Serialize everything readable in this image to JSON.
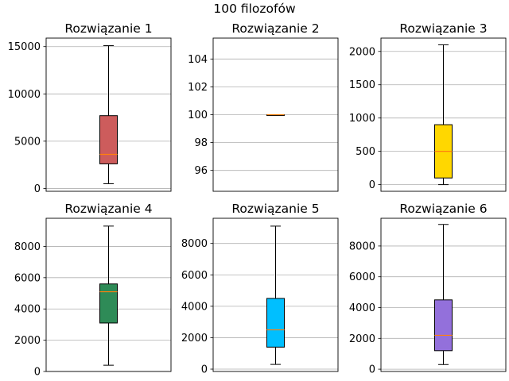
{
  "suptitle": "100 filozofów",
  "chart_data": [
    {
      "type": "box",
      "title": "Rozwiązanie 1",
      "color": "#cd5c5c",
      "ylim": [
        -300,
        15900
      ],
      "yticks": [
        0,
        5000,
        10000,
        15000
      ],
      "box": {
        "whisker_low": 500,
        "q1": 2600,
        "median": 3600,
        "q3": 7700,
        "whisker_high": 15100
      },
      "grid": true
    },
    {
      "type": "box",
      "title": "Rozwiązanie 2",
      "color": "#cd5c5c",
      "ylim": [
        94.5,
        105.5
      ],
      "yticks": [
        96,
        98,
        100,
        102,
        104
      ],
      "box": {
        "whisker_low": 100,
        "q1": 100,
        "median": 100,
        "q3": 100,
        "whisker_high": 100
      },
      "grid": true
    },
    {
      "type": "box",
      "title": "Rozwiązanie 3",
      "color": "#ffd700",
      "ylim": [
        -100,
        2200
      ],
      "yticks": [
        0,
        500,
        1000,
        1500,
        2000
      ],
      "box": {
        "whisker_low": 0,
        "q1": 100,
        "median": 500,
        "q3": 900,
        "whisker_high": 2100
      },
      "grid": true
    },
    {
      "type": "box",
      "title": "Rozwiązanie 4",
      "color": "#2e8b57",
      "ylim": [
        0,
        9800
      ],
      "yticks": [
        0,
        2000,
        4000,
        6000,
        8000
      ],
      "box": {
        "whisker_low": 400,
        "q1": 3100,
        "median": 5100,
        "q3": 5600,
        "whisker_high": 9300
      },
      "grid": true
    },
    {
      "type": "box",
      "title": "Rozwiązanie 5",
      "color": "#00bfff",
      "ylim": [
        -150,
        9600
      ],
      "yticks": [
        0,
        2000,
        4000,
        6000,
        8000
      ],
      "box": {
        "whisker_low": 300,
        "q1": 1400,
        "median": 2500,
        "q3": 4500,
        "whisker_high": 9100
      },
      "grid": true
    },
    {
      "type": "box",
      "title": "Rozwiązanie 6",
      "color": "#9370db",
      "ylim": [
        -150,
        9800
      ],
      "yticks": [
        0,
        2000,
        4000,
        6000,
        8000
      ],
      "box": {
        "whisker_low": 300,
        "q1": 1200,
        "median": 2200,
        "q3": 4500,
        "whisker_high": 9400
      },
      "grid": true
    }
  ]
}
